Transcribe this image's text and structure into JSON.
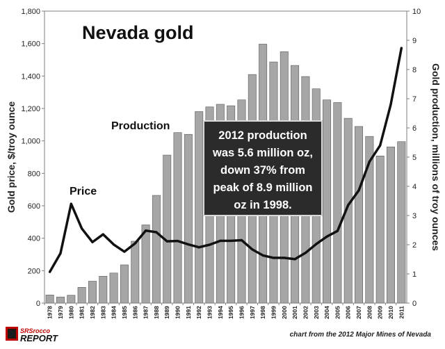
{
  "chart_data": {
    "type": "bar",
    "title": "Nevada gold",
    "ylabel_left": "Gold price, $/troy ounce",
    "ylabel_right": "Gold production, millions of troy ounces",
    "ylim_left": [
      0,
      1800
    ],
    "ylim_right": [
      0,
      10
    ],
    "yticks_left": [
      "0",
      "200",
      "400",
      "600",
      "800",
      "1,000",
      "1,200",
      "1,400",
      "1,600",
      "1,800"
    ],
    "yticks_right": [
      "0",
      "1",
      "2",
      "3",
      "4",
      "5",
      "6",
      "7",
      "8",
      "9",
      "10"
    ],
    "categories": [
      "1978",
      "1979",
      "1980",
      "1981",
      "1982",
      "1983",
      "1984",
      "1985",
      "1986",
      "1987",
      "1988",
      "1989",
      "1990",
      "1991",
      "1992",
      "1993",
      "1994",
      "1995",
      "1996",
      "1997",
      "1998",
      "1999",
      "2000",
      "2001",
      "2002",
      "2003",
      "2004",
      "2005",
      "2006",
      "2007",
      "2008",
      "2009",
      "2010",
      "2011"
    ],
    "series": [
      {
        "name": "Production",
        "axis": "right",
        "kind": "bar",
        "color": "#a6a6a6",
        "values": [
          0.28,
          0.21,
          0.27,
          0.54,
          0.75,
          0.92,
          1.03,
          1.31,
          2.12,
          2.68,
          3.69,
          5.07,
          5.84,
          5.78,
          6.56,
          6.72,
          6.81,
          6.76,
          6.96,
          7.83,
          8.87,
          8.26,
          8.61,
          8.14,
          7.76,
          7.34,
          6.96,
          6.87,
          6.33,
          6.05,
          5.71,
          5.04,
          5.35,
          5.53
        ]
      },
      {
        "name": "Price",
        "axis": "left",
        "kind": "line",
        "color": "#111111",
        "values": [
          193,
          307,
          612,
          460,
          376,
          424,
          361,
          317,
          368,
          447,
          437,
          381,
          383,
          362,
          344,
          360,
          384,
          384,
          388,
          331,
          294,
          279,
          279,
          271,
          310,
          364,
          410,
          445,
          604,
          695,
          872,
          972,
          1225,
          1572
        ]
      }
    ],
    "annotations": {
      "callout": [
        "2012 production",
        "was 5.6 million oz,",
        "down 37% from",
        "peak of 8.9 million",
        "oz in 1998."
      ],
      "production_label": "Production",
      "price_label": "Price"
    },
    "credit": "chart from the 2012 Major Mines of Nevada",
    "logo_top": "SRSrocco",
    "logo_bottom": "REPORT",
    "grid": false,
    "colors": {
      "bars": "#a6a6a6",
      "bar_edge": "#595959",
      "line": "#111111",
      "callout_bg": "#2b2b2b",
      "logo_red": "#c00000"
    }
  }
}
